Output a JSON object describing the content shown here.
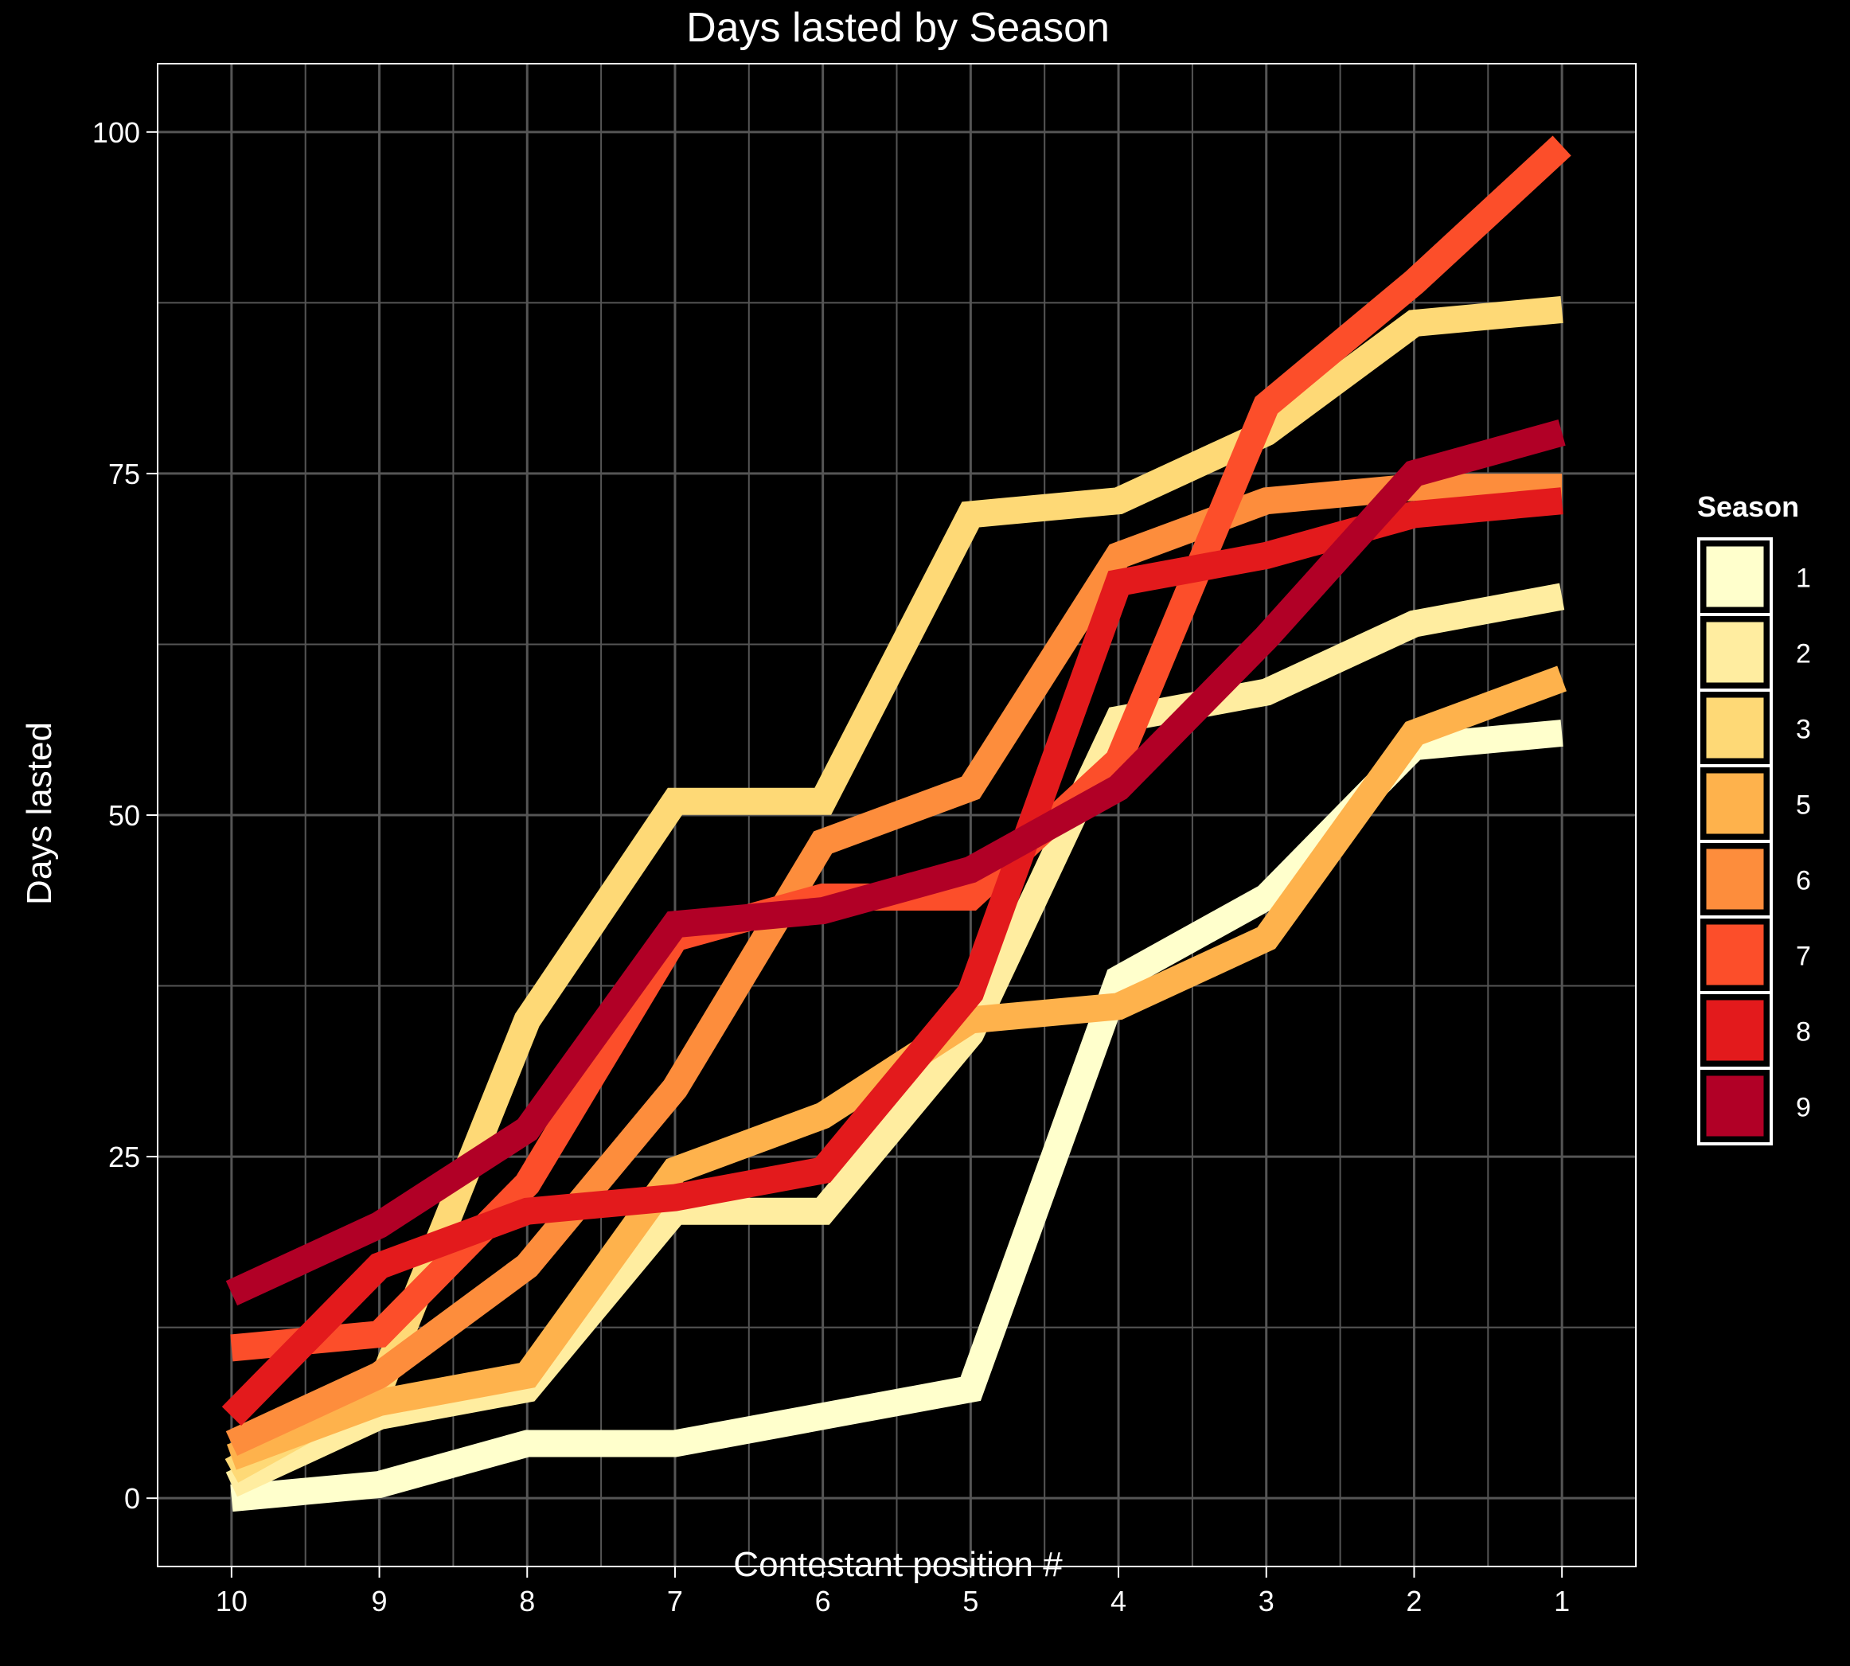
{
  "chart_data": {
    "type": "line",
    "title": "Days lasted by Season",
    "xlabel": "Contestant position #",
    "ylabel": "Days lasted",
    "x": [
      "10",
      "9",
      "8",
      "7",
      "6",
      "5",
      "4",
      "3",
      "2",
      "1"
    ],
    "ylim": [
      -5,
      105
    ],
    "yticks": [
      "0",
      "25",
      "50",
      "75",
      "100"
    ],
    "grid": true,
    "legend": {
      "title": "Season",
      "position": "right"
    },
    "series": [
      {
        "name": "1",
        "color": "#ffffcc",
        "values": [
          0,
          1,
          4,
          4,
          6,
          8,
          38,
          44,
          55,
          56
        ]
      },
      {
        "name": "2",
        "color": "#ffeda0",
        "values": [
          1,
          6,
          8,
          21,
          21,
          34,
          57,
          59,
          64,
          66
        ]
      },
      {
        "name": "3",
        "color": "#fed976",
        "values": [
          2,
          8,
          35,
          51,
          51,
          72,
          73,
          78,
          86,
          87
        ]
      },
      {
        "name": "5",
        "color": "#feb24c",
        "values": [
          3,
          7,
          9,
          24,
          28,
          35,
          36,
          41,
          56,
          60
        ]
      },
      {
        "name": "6",
        "color": "#fd8d3c",
        "values": [
          4,
          9,
          17,
          30,
          48,
          52,
          69,
          73,
          74,
          74
        ]
      },
      {
        "name": "7",
        "color": "#fc4e2a",
        "values": [
          11,
          12,
          23,
          41,
          44,
          44,
          54,
          80,
          89,
          99
        ]
      },
      {
        "name": "8",
        "color": "#e31a1c",
        "values": [
          6,
          17,
          21,
          22,
          24,
          37,
          67,
          69,
          72,
          73
        ]
      },
      {
        "name": "9",
        "color": "#b10026",
        "values": [
          15,
          20,
          27,
          42,
          43,
          46,
          52,
          63,
          75,
          78
        ]
      }
    ]
  }
}
